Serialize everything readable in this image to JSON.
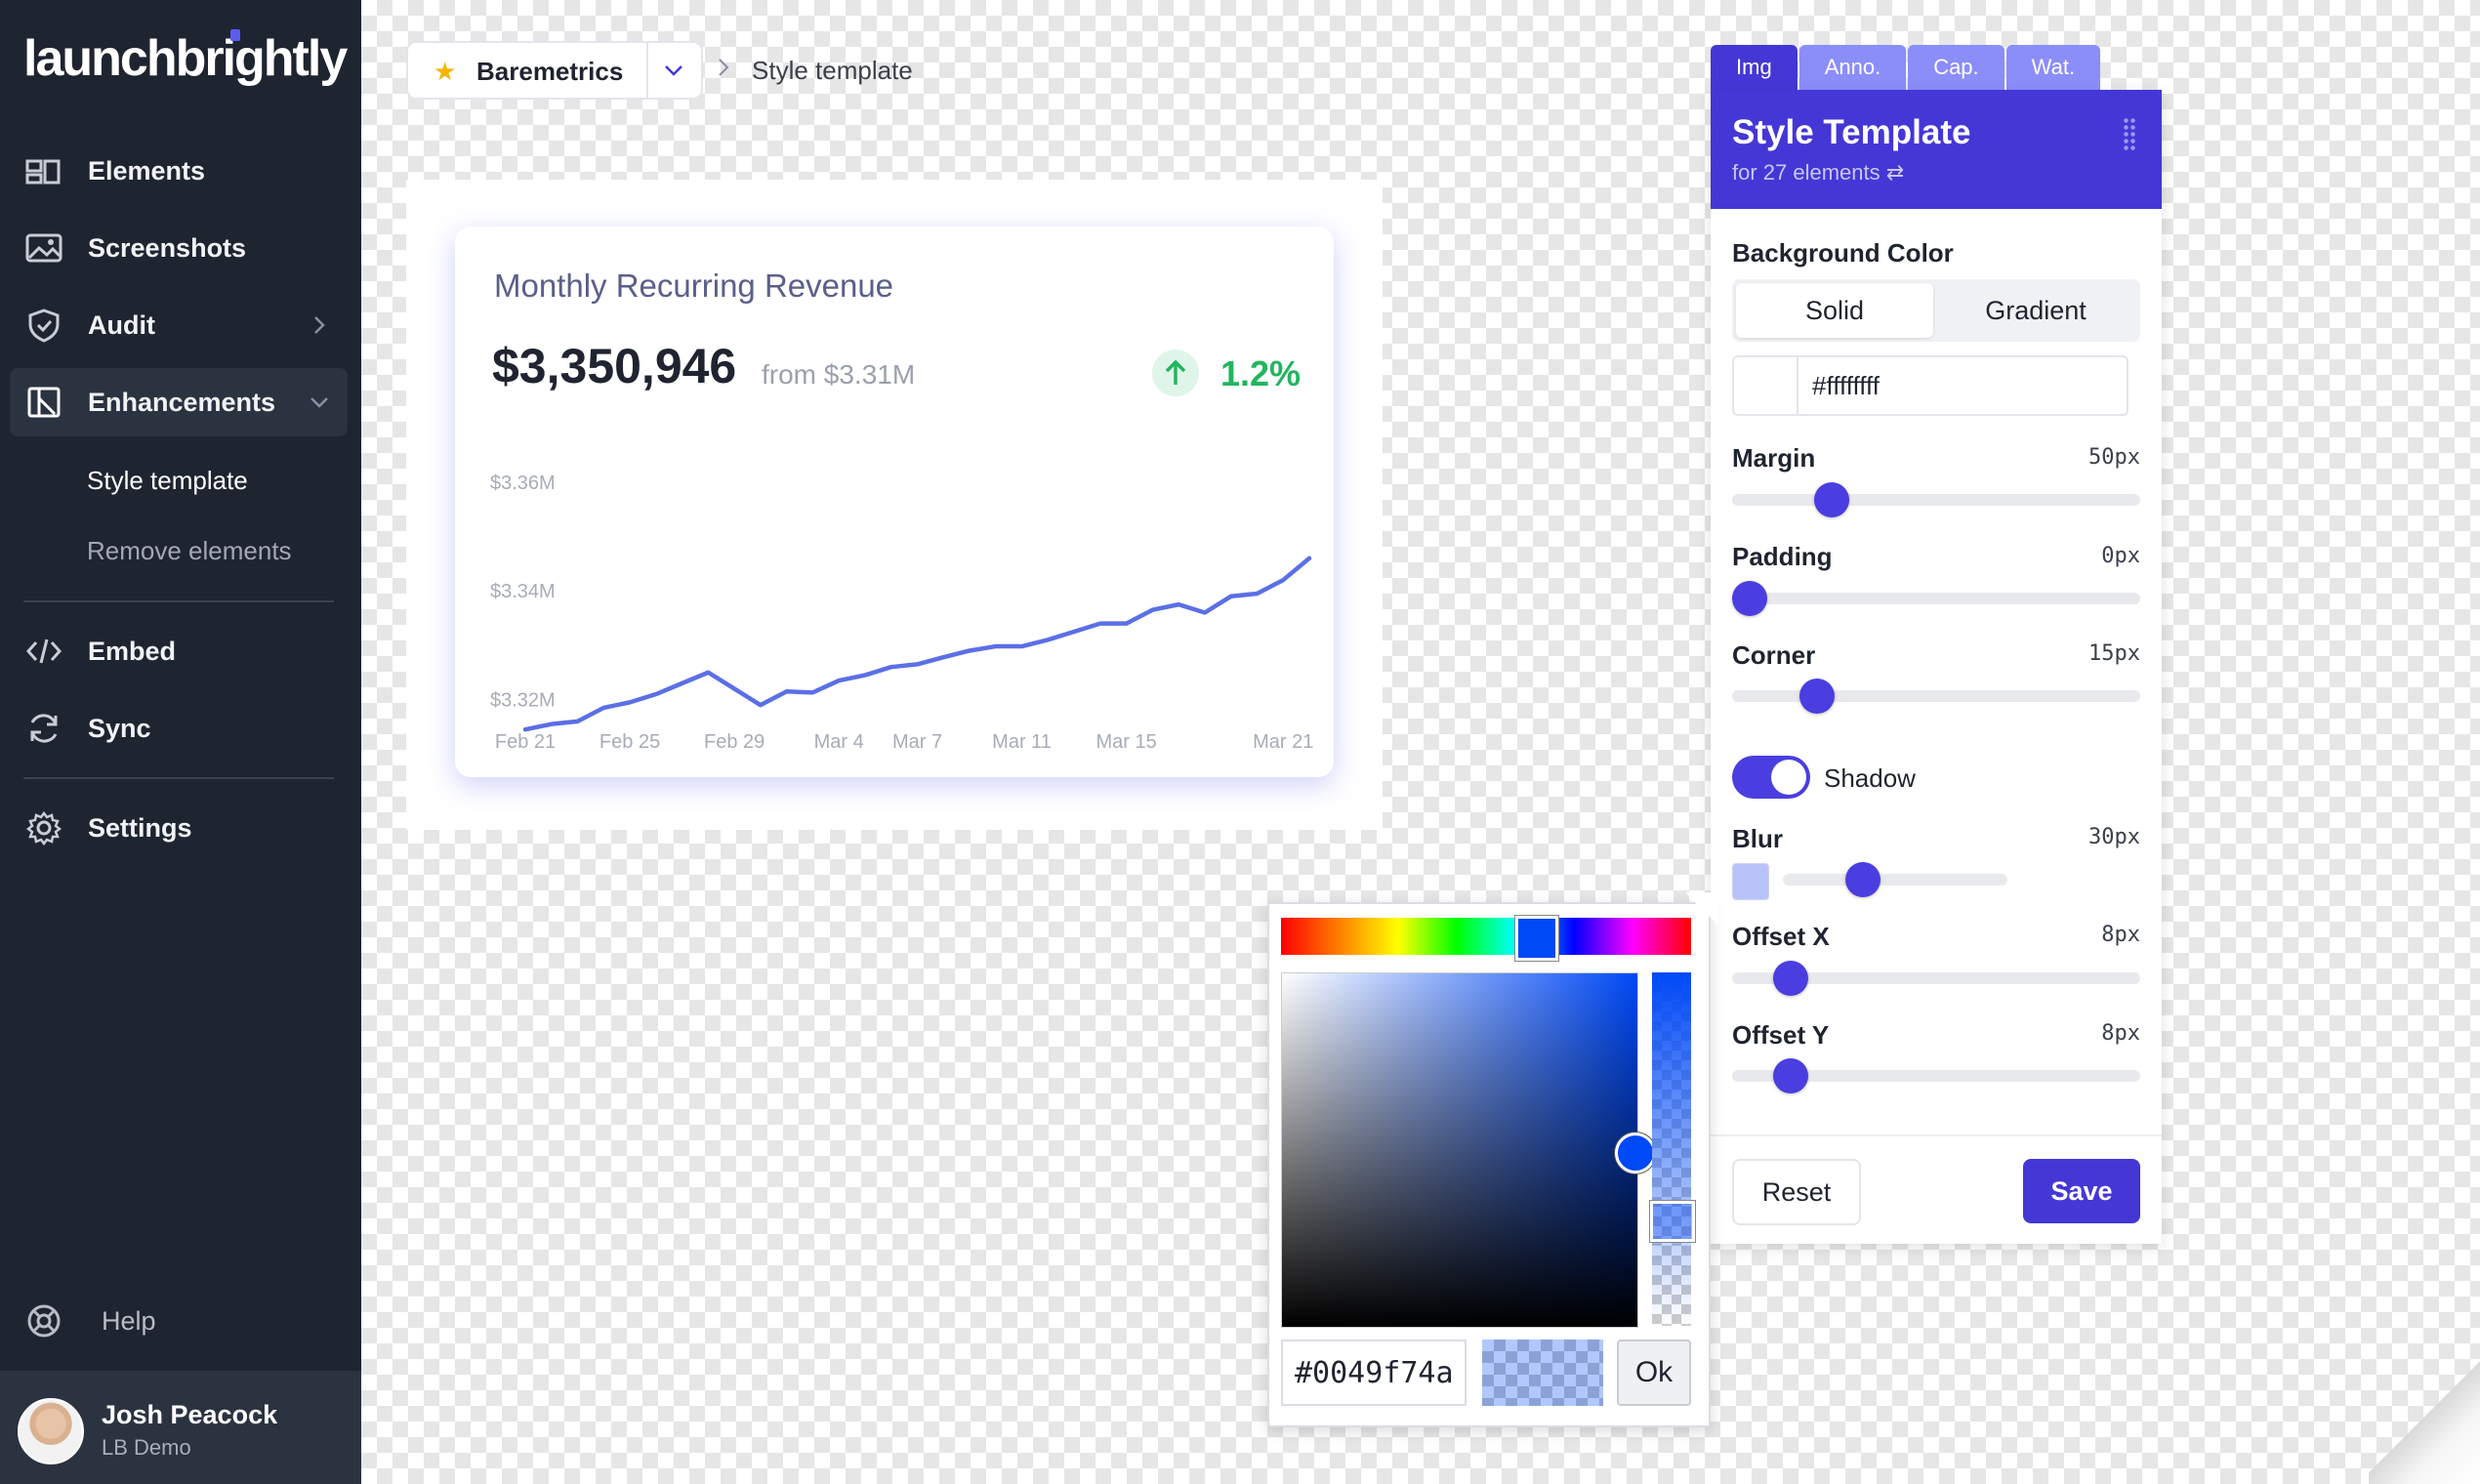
{
  "sidebar": {
    "logo": "launchbrightly",
    "items": [
      {
        "label": "Elements"
      },
      {
        "label": "Screenshots"
      },
      {
        "label": "Audit"
      },
      {
        "label": "Enhancements"
      },
      {
        "label": "Embed"
      },
      {
        "label": "Sync"
      },
      {
        "label": "Settings"
      }
    ],
    "sub_items": [
      {
        "label": "Style template"
      },
      {
        "label": "Remove elements"
      }
    ],
    "help": "Help",
    "user": {
      "name": "Josh Peacock",
      "org": "LB Demo"
    }
  },
  "breadcrumb": {
    "project": "Baremetrics",
    "page": "Style template"
  },
  "card": {
    "title": "Monthly Recurring Revenue",
    "value": "$3,350,946",
    "from": "from $3.31M",
    "change": "1.2%"
  },
  "chart_data": {
    "type": "line",
    "title": "",
    "y_ticks": [
      "$3.36M",
      "$3.34M",
      "$3.32M"
    ],
    "y_tick_values": [
      3.36,
      3.34,
      3.32
    ],
    "ylim": [
      3.314,
      3.365
    ],
    "x_ticks": [
      "Feb 21",
      "Feb 25",
      "Feb 29",
      "Mar 4",
      "Mar 7",
      "Mar 11",
      "Mar 15",
      "Mar 21"
    ],
    "x_tick_index": [
      0,
      4,
      8,
      12,
      15,
      19,
      23,
      29
    ],
    "series": [
      {
        "values": [
          3.3145,
          3.3155,
          3.316,
          3.3185,
          3.3195,
          3.321,
          3.323,
          3.325,
          3.322,
          3.319,
          3.3215,
          3.3213,
          3.3235,
          3.3245,
          3.326,
          3.3265,
          3.3278,
          3.329,
          3.3298,
          3.3298,
          3.331,
          3.3325,
          3.334,
          3.334,
          3.3365,
          3.3375,
          3.336,
          3.339,
          3.3395,
          3.342,
          3.346
        ],
        "color": "#5b6fe6"
      }
    ],
    "grid": false
  },
  "panel": {
    "tabs": [
      "Img",
      "Anno.",
      "Cap.",
      "Wat."
    ],
    "title": "Style Template",
    "subtitle": "for 27 elements ⇄",
    "bg_label": "Background Color",
    "bg_options": [
      "Solid",
      "Gradient"
    ],
    "bg_hex": "#ffffffff",
    "margin": {
      "label": "Margin",
      "value": "50px",
      "level": 0.22
    },
    "padding": {
      "label": "Padding",
      "value": "0px",
      "level": 0.0
    },
    "corner": {
      "label": "Corner",
      "value": "15px",
      "level": 0.18
    },
    "shadow_label": "Shadow",
    "blur": {
      "label": "Blur",
      "value": "30px",
      "level": 0.33
    },
    "offset_x": {
      "label": "Offset X",
      "value": "8px",
      "level": 0.11
    },
    "offset_y": {
      "label": "Offset Y",
      "value": "8px",
      "level": 0.11
    },
    "reset": "Reset",
    "save": "Save"
  },
  "picker": {
    "hex": "#0049f74a",
    "ok": "Ok",
    "color": "#0049f7"
  },
  "colors": {
    "sidebar": "#1e2430",
    "accent": "#4437d6",
    "line": "#5b6fe6",
    "positive": "#22b55f"
  }
}
